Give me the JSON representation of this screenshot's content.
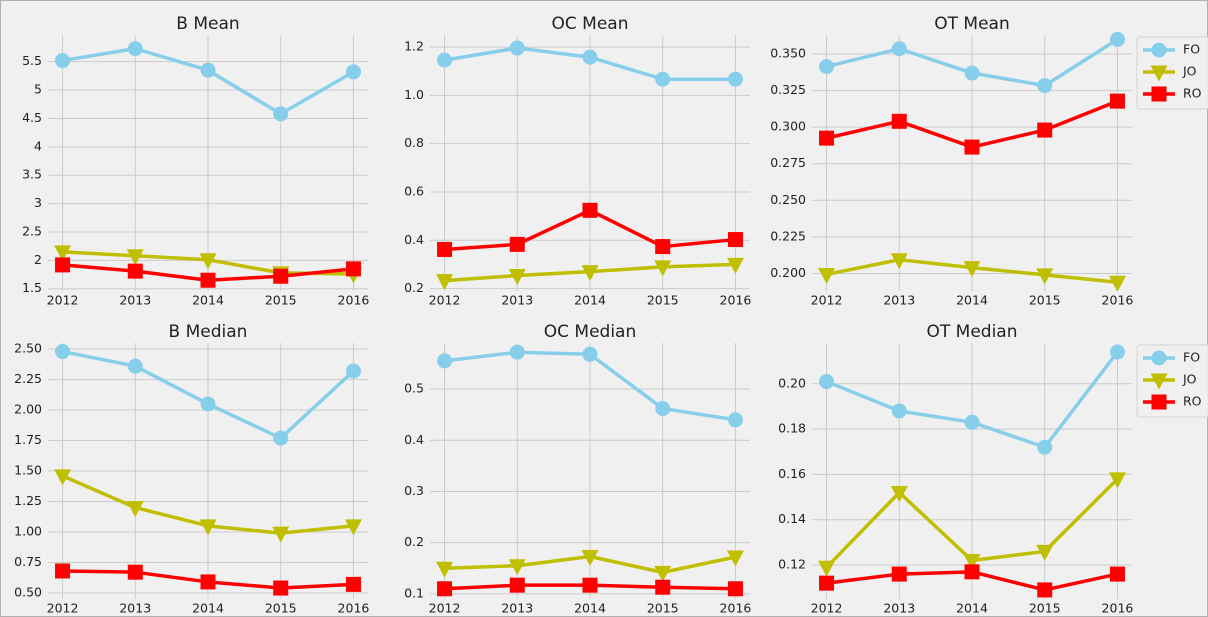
{
  "chart_data": [
    {
      "type": "line",
      "title": "B Mean",
      "x": [
        2012,
        2013,
        2014,
        2015,
        2016
      ],
      "xlim": [
        2011.8,
        2016.2
      ],
      "xticks": [
        2012,
        2013,
        2014,
        2015,
        2016
      ],
      "ylim": [
        1.46,
        5.97
      ],
      "yticks": [
        1.5,
        2.0,
        2.5,
        3.0,
        3.5,
        4.0,
        4.5,
        5.0,
        5.5
      ],
      "grid": true,
      "series": [
        {
          "name": "FO",
          "color": "#87ceeb",
          "marker": "o",
          "values": [
            5.52,
            5.73,
            5.35,
            4.58,
            5.32
          ]
        },
        {
          "name": "JO",
          "color": "#bfbf00",
          "marker": "v",
          "values": [
            2.15,
            2.08,
            2.01,
            1.78,
            1.76
          ]
        },
        {
          "name": "RO",
          "color": "#ff0000",
          "marker": "s",
          "values": [
            1.92,
            1.81,
            1.65,
            1.72,
            1.85
          ]
        }
      ]
    },
    {
      "type": "line",
      "title": "OC Mean",
      "x": [
        2012,
        2013,
        2014,
        2015,
        2016
      ],
      "xlim": [
        2011.8,
        2016.2
      ],
      "xticks": [
        2012,
        2013,
        2014,
        2015,
        2016
      ],
      "ylim": [
        0.19,
        1.25
      ],
      "yticks": [
        0.2,
        0.4,
        0.6,
        0.8,
        {
          "value": 1.0,
          "label": "1.0"
        },
        1.2
      ],
      "grid": true,
      "series": [
        {
          "name": "FO",
          "color": "#87ceeb",
          "marker": "o",
          "values": [
            1.146,
            1.196,
            1.158,
            1.067,
            1.067
          ]
        },
        {
          "name": "JO",
          "color": "#bfbf00",
          "marker": "v",
          "values": [
            0.233,
            0.254,
            0.27,
            0.29,
            0.3
          ]
        },
        {
          "name": "RO",
          "color": "#ff0000",
          "marker": "s",
          "values": [
            0.362,
            0.383,
            0.524,
            0.374,
            0.403
          ]
        }
      ]
    },
    {
      "type": "line",
      "title": "OT Mean",
      "x": [
        2012,
        2013,
        2014,
        2015,
        2016
      ],
      "xlim": [
        2011.8,
        2016.2
      ],
      "xticks": [
        2012,
        2013,
        2014,
        2015,
        2016
      ],
      "ylim": [
        0.188,
        0.363
      ],
      "yticks": [
        {
          "value": 0.2,
          "label": "0.200"
        },
        {
          "value": 0.225,
          "label": "0.225"
        },
        {
          "value": 0.25,
          "label": "0.250"
        },
        {
          "value": 0.275,
          "label": "0.275"
        },
        {
          "value": 0.3,
          "label": "0.300"
        },
        {
          "value": 0.325,
          "label": "0.325"
        },
        {
          "value": 0.35,
          "label": "0.350"
        }
      ],
      "grid": true,
      "legend": "outside upper right",
      "series": [
        {
          "name": "FO",
          "color": "#87ceeb",
          "marker": "o",
          "values": [
            0.3414,
            0.3536,
            0.337,
            0.3284,
            0.36
          ]
        },
        {
          "name": "JO",
          "color": "#bfbf00",
          "marker": "v",
          "values": [
            0.1993,
            0.2094,
            0.204,
            0.199,
            0.194
          ]
        },
        {
          "name": "RO",
          "color": "#ff0000",
          "marker": "s",
          "values": [
            0.2925,
            0.304,
            0.2864,
            0.298,
            0.3178
          ]
        }
      ]
    },
    {
      "type": "line",
      "title": "B Median",
      "x": [
        2012,
        2013,
        2014,
        2015,
        2016
      ],
      "xlim": [
        2011.8,
        2016.2
      ],
      "xticks": [
        2012,
        2013,
        2014,
        2015,
        2016
      ],
      "ylim": [
        0.45,
        2.55
      ],
      "yticks": [
        {
          "value": 0.5,
          "label": "0.50"
        },
        0.75,
        {
          "value": 1.0,
          "label": "1.00"
        },
        1.25,
        {
          "value": 1.5,
          "label": "1.50"
        },
        1.75,
        {
          "value": 2.0,
          "label": "2.00"
        },
        2.25,
        {
          "value": 2.5,
          "label": "2.50"
        }
      ],
      "grid": true,
      "series": [
        {
          "name": "FO",
          "color": "#87ceeb",
          "marker": "o",
          "values": [
            2.48,
            2.36,
            2.05,
            1.77,
            2.32
          ]
        },
        {
          "name": "JO",
          "color": "#bfbf00",
          "marker": "v",
          "values": [
            1.46,
            1.2,
            1.05,
            0.99,
            1.05
          ]
        },
        {
          "name": "RO",
          "color": "#ff0000",
          "marker": "s",
          "values": [
            0.68,
            0.67,
            0.59,
            0.54,
            0.57
          ]
        }
      ]
    },
    {
      "type": "line",
      "title": "OC Median",
      "x": [
        2012,
        2013,
        2014,
        2015,
        2016
      ],
      "xlim": [
        2011.8,
        2016.2
      ],
      "xticks": [
        2012,
        2013,
        2014,
        2015,
        2016
      ],
      "ylim": [
        0.09,
        0.59
      ],
      "yticks": [
        0.1,
        0.2,
        0.3,
        0.4,
        0.5
      ],
      "grid": true,
      "series": [
        {
          "name": "FO",
          "color": "#87ceeb",
          "marker": "o",
          "values": [
            0.555,
            0.572,
            0.568,
            0.462,
            0.44
          ]
        },
        {
          "name": "JO",
          "color": "#bfbf00",
          "marker": "v",
          "values": [
            0.15,
            0.155,
            0.173,
            0.142,
            0.172
          ]
        },
        {
          "name": "RO",
          "color": "#ff0000",
          "marker": "s",
          "values": [
            0.11,
            0.117,
            0.117,
            0.113,
            0.11
          ]
        }
      ]
    },
    {
      "type": "line",
      "title": "OT Median",
      "x": [
        2012,
        2013,
        2014,
        2015,
        2016
      ],
      "xlim": [
        2011.8,
        2016.2
      ],
      "xticks": [
        2012,
        2013,
        2014,
        2015,
        2016
      ],
      "ylim": [
        0.105,
        0.218
      ],
      "yticks": [
        0.12,
        0.14,
        0.16,
        0.18,
        {
          "value": 0.2,
          "label": "0.20"
        }
      ],
      "grid": true,
      "legend": "outside upper right",
      "series": [
        {
          "name": "FO",
          "color": "#87ceeb",
          "marker": "o",
          "values": [
            0.201,
            0.188,
            0.183,
            0.172,
            0.214
          ]
        },
        {
          "name": "JO",
          "color": "#bfbf00",
          "marker": "v",
          "values": [
            0.119,
            0.152,
            0.122,
            0.126,
            0.158
          ]
        },
        {
          "name": "RO",
          "color": "#ff0000",
          "marker": "s",
          "values": [
            0.112,
            0.116,
            0.117,
            0.109,
            0.116
          ]
        }
      ]
    }
  ]
}
